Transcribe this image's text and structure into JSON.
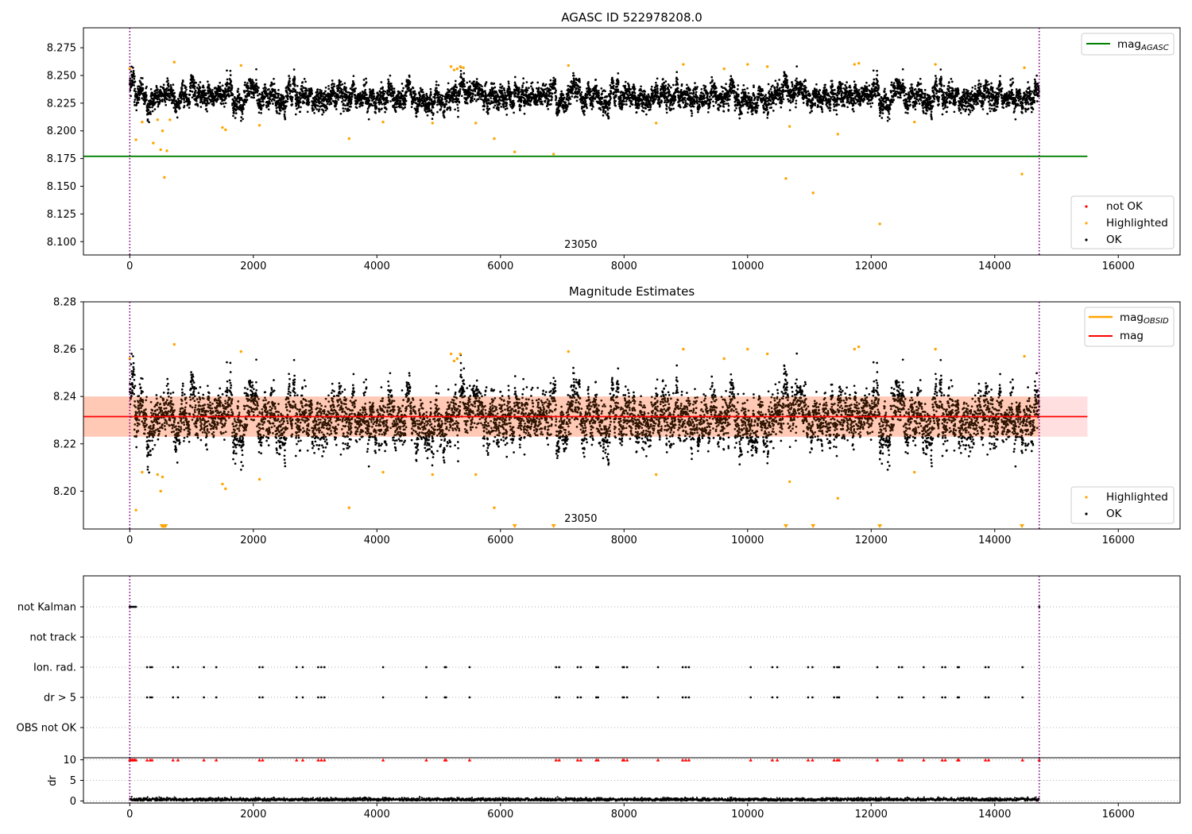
{
  "chart_data": [
    {
      "type": "scatter",
      "title": "AGASC ID 522978208.0",
      "xlim": [
        -750,
        17000
      ],
      "ylim": [
        8.088,
        8.293
      ],
      "x_ticks": [
        0,
        2000,
        4000,
        6000,
        8000,
        10000,
        12000,
        14000,
        16000
      ],
      "y_ticks": [
        8.1,
        8.125,
        8.15,
        8.175,
        8.2,
        8.225,
        8.25,
        8.275
      ],
      "y_tick_labels": [
        "8.100",
        "8.125",
        "8.150",
        "8.175",
        "8.200",
        "8.225",
        "8.250",
        "8.275"
      ],
      "vlines": [
        0,
        14720
      ],
      "obsid_label": "23050",
      "obsid_label_x": 7300,
      "hline": {
        "name": "mag_AGASC",
        "y": 8.177,
        "x_end": 15500,
        "color": "#008000"
      },
      "ok_series": {
        "name": "OK",
        "color": "#000000",
        "n_points": 14720,
        "mean": 8.231,
        "scatter": 0.0075
      },
      "highlighted": {
        "name": "Highlighted",
        "color": "#ffa500",
        "x": [
          0,
          100,
          200,
          380,
          450,
          500,
          530,
          560,
          600,
          650,
          720,
          1500,
          1550,
          1800,
          2100,
          3550,
          4100,
          4900,
          5200,
          5250,
          5300,
          5350,
          5400,
          5600,
          5900,
          6230,
          6860,
          7100,
          8520,
          8960,
          9620,
          10000,
          10320,
          10620,
          10680,
          11060,
          11460,
          11730,
          11800,
          12140,
          12700,
          13040,
          14440,
          14480
        ],
        "y": [
          8.256,
          8.192,
          8.208,
          8.189,
          8.21,
          8.183,
          8.2,
          8.158,
          8.182,
          8.21,
          8.262,
          8.203,
          8.201,
          8.259,
          8.205,
          8.193,
          8.208,
          8.207,
          8.258,
          8.255,
          8.256,
          8.258,
          8.257,
          8.207,
          8.193,
          8.181,
          8.179,
          8.259,
          8.207,
          8.26,
          8.256,
          8.26,
          8.258,
          8.157,
          8.204,
          8.144,
          8.197,
          8.26,
          8.261,
          8.116,
          8.208,
          8.26,
          8.161,
          8.257
        ]
      },
      "not_ok": {
        "name": "not OK",
        "color": "#ff0000",
        "x": [],
        "y": []
      },
      "legend_upper": [
        "mag_AGASC"
      ],
      "legend_lower": [
        "not OK",
        "Highlighted",
        "OK"
      ],
      "legend_placement": [
        "upper-right",
        "lower-right"
      ]
    },
    {
      "type": "scatter",
      "title": "Magnitude Estimates",
      "xlim": [
        -750,
        17000
      ],
      "ylim": [
        8.184,
        8.28
      ],
      "x_ticks": [
        0,
        2000,
        4000,
        6000,
        8000,
        10000,
        12000,
        14000,
        16000
      ],
      "y_ticks": [
        8.2,
        8.22,
        8.24,
        8.26,
        8.28
      ],
      "y_tick_labels": [
        "8.20",
        "8.22",
        "8.24",
        "8.26",
        "8.28"
      ],
      "vlines": [
        0,
        14720
      ],
      "obsid_label": "23050",
      "obsid_label_x": 7300,
      "mag_line": {
        "name": "mag",
        "y": 8.2315,
        "x_end": 15500,
        "color": "#ff0000"
      },
      "mag_band": {
        "low": 8.223,
        "high": 8.24,
        "color": "#ffc0c0"
      },
      "mag_obsid": {
        "name": "mag_OBSID",
        "color": "#ffa500"
      },
      "ok_series": {
        "name": "OK",
        "color": "#000000",
        "n_points": 14720,
        "mean": 8.231,
        "scatter": 0.0075
      },
      "highlighted": {
        "name": "Highlighted",
        "color": "#ffa500",
        "x": [
          0,
          100,
          200,
          450,
          500,
          530,
          720,
          1500,
          1550,
          1800,
          2100,
          3550,
          4100,
          4900,
          5200,
          5250,
          5300,
          5350,
          5600,
          5900,
          7100,
          8520,
          8960,
          9620,
          10000,
          10320,
          10680,
          11460,
          11730,
          11800,
          12700,
          13040,
          14480
        ],
        "y": [
          8.256,
          8.192,
          8.208,
          8.207,
          8.2,
          8.206,
          8.262,
          8.203,
          8.201,
          8.259,
          8.205,
          8.193,
          8.208,
          8.207,
          8.258,
          8.255,
          8.256,
          8.258,
          8.207,
          8.193,
          8.259,
          8.207,
          8.26,
          8.256,
          8.26,
          8.258,
          8.204,
          8.197,
          8.26,
          8.261,
          8.208,
          8.26,
          8.257
        ]
      },
      "below_range_markers_x": [
        520,
        540,
        560,
        580,
        6230,
        6860,
        10620,
        11060,
        12140,
        14440
      ],
      "legend_upper": [
        "mag_OBSID",
        "mag"
      ],
      "legend_lower": [
        "Highlighted",
        "OK"
      ],
      "legend_placement": [
        "upper-right",
        "lower-right"
      ]
    },
    {
      "type": "scatter",
      "title": "",
      "xlim": [
        -750,
        17000
      ],
      "x_ticks": [
        0,
        2000,
        4000,
        6000,
        8000,
        10000,
        12000,
        14000,
        16000
      ],
      "vlines": [
        0,
        14720
      ],
      "flag_rows": [
        "not Kalman",
        "not track",
        "Ion. rad.",
        "dr > 5",
        "OBS not OK"
      ],
      "flags": {
        "not Kalman": [
          0,
          20,
          40,
          60,
          80,
          100,
          14720
        ],
        "not track": [],
        "Ion. rad.": [
          280,
          330,
          360,
          700,
          780,
          1200,
          1400,
          2100,
          2150,
          2700,
          2800,
          3050,
          3100,
          3150,
          4100,
          4800,
          5100,
          5120,
          5500,
          6900,
          6950,
          7250,
          7300,
          7550,
          7580,
          7980,
          8000,
          8050,
          8550,
          8950,
          9000,
          9050,
          10050,
          10400,
          10480,
          10980,
          11050,
          11400,
          11450,
          11480,
          12100,
          12450,
          12500,
          12850,
          13150,
          13200,
          13400,
          13420,
          13850,
          13900,
          14450
        ],
        "dr > 5": [
          280,
          330,
          360,
          700,
          780,
          1200,
          1400,
          2100,
          2150,
          2700,
          2800,
          3050,
          3100,
          3150,
          4100,
          4800,
          5100,
          5120,
          5500,
          6900,
          6950,
          7250,
          7300,
          7550,
          7580,
          7980,
          8000,
          8050,
          8550,
          8950,
          9000,
          9050,
          10050,
          10400,
          10480,
          10980,
          11050,
          11400,
          11450,
          11480,
          12100,
          12450,
          12500,
          12850,
          13150,
          13200,
          13400,
          13420,
          13850,
          13900,
          14450
        ],
        "OBS not OK": []
      },
      "dr_panel": {
        "ylabel": "dr",
        "y_ticks": [
          0,
          5,
          10
        ],
        "ylim": [
          -0.5,
          10.5
        ],
        "typical_dr": 0.35,
        "clipped_at": 10,
        "clipped_x": [
          0,
          20,
          40,
          60,
          80,
          100,
          280,
          330,
          360,
          700,
          780,
          1200,
          1400,
          2100,
          2150,
          2700,
          2800,
          3050,
          3100,
          3150,
          4100,
          4800,
          5100,
          5120,
          5500,
          6900,
          6950,
          7250,
          7300,
          7550,
          7580,
          7980,
          8000,
          8050,
          8550,
          8950,
          9000,
          9050,
          10050,
          10400,
          10480,
          10980,
          11050,
          11400,
          11450,
          11480,
          12100,
          12450,
          12500,
          12850,
          13150,
          13200,
          13400,
          13420,
          13850,
          13900,
          14450,
          14720
        ],
        "clipped_color": "#ff0000"
      }
    }
  ]
}
